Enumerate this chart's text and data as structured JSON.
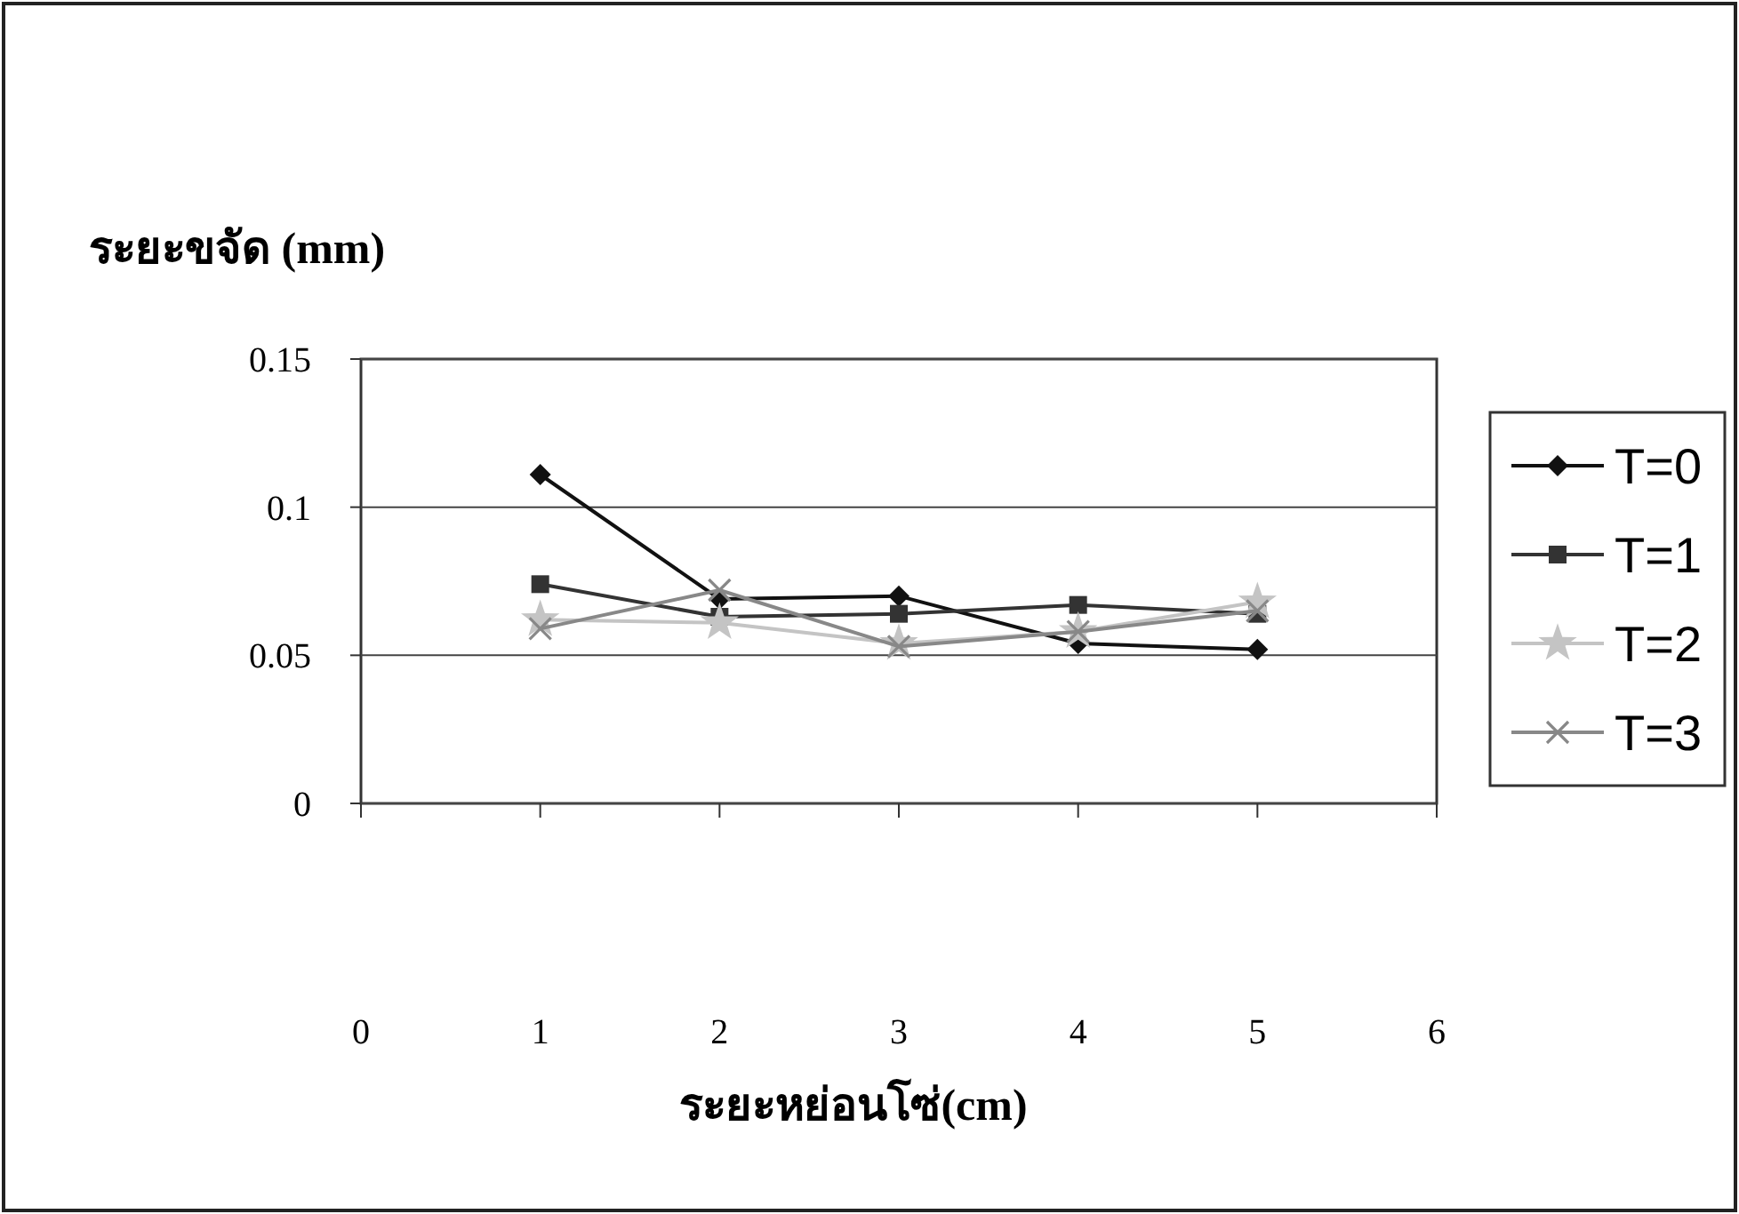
{
  "chart_data": {
    "type": "line",
    "ylabel": "ระยะขจัด (mm)",
    "xlabel": "ระยะหย่อนโซ่(cm)",
    "x": [
      1,
      2,
      3,
      4,
      5
    ],
    "xlim": [
      0,
      6
    ],
    "xticks": [
      0,
      1,
      2,
      3,
      4,
      5,
      6
    ],
    "ylim": [
      0,
      0.15
    ],
    "yticks": [
      0,
      0.05,
      0.1,
      0.15
    ],
    "grid": "y",
    "legend": "right",
    "series": [
      {
        "name": "T=0",
        "color": "#111111",
        "marker": "diamond",
        "values": [
          0.111,
          0.069,
          0.07,
          0.054,
          0.052
        ]
      },
      {
        "name": "T=1",
        "color": "#333333",
        "marker": "square",
        "values": [
          0.074,
          0.063,
          0.064,
          0.067,
          0.064
        ]
      },
      {
        "name": "T=2",
        "color": "#c4c4c4",
        "marker": "star",
        "values": [
          0.062,
          0.061,
          0.054,
          0.058,
          0.068
        ]
      },
      {
        "name": "T=3",
        "color": "#888888",
        "marker": "cross",
        "values": [
          0.059,
          0.072,
          0.053,
          0.058,
          0.065
        ]
      }
    ]
  }
}
